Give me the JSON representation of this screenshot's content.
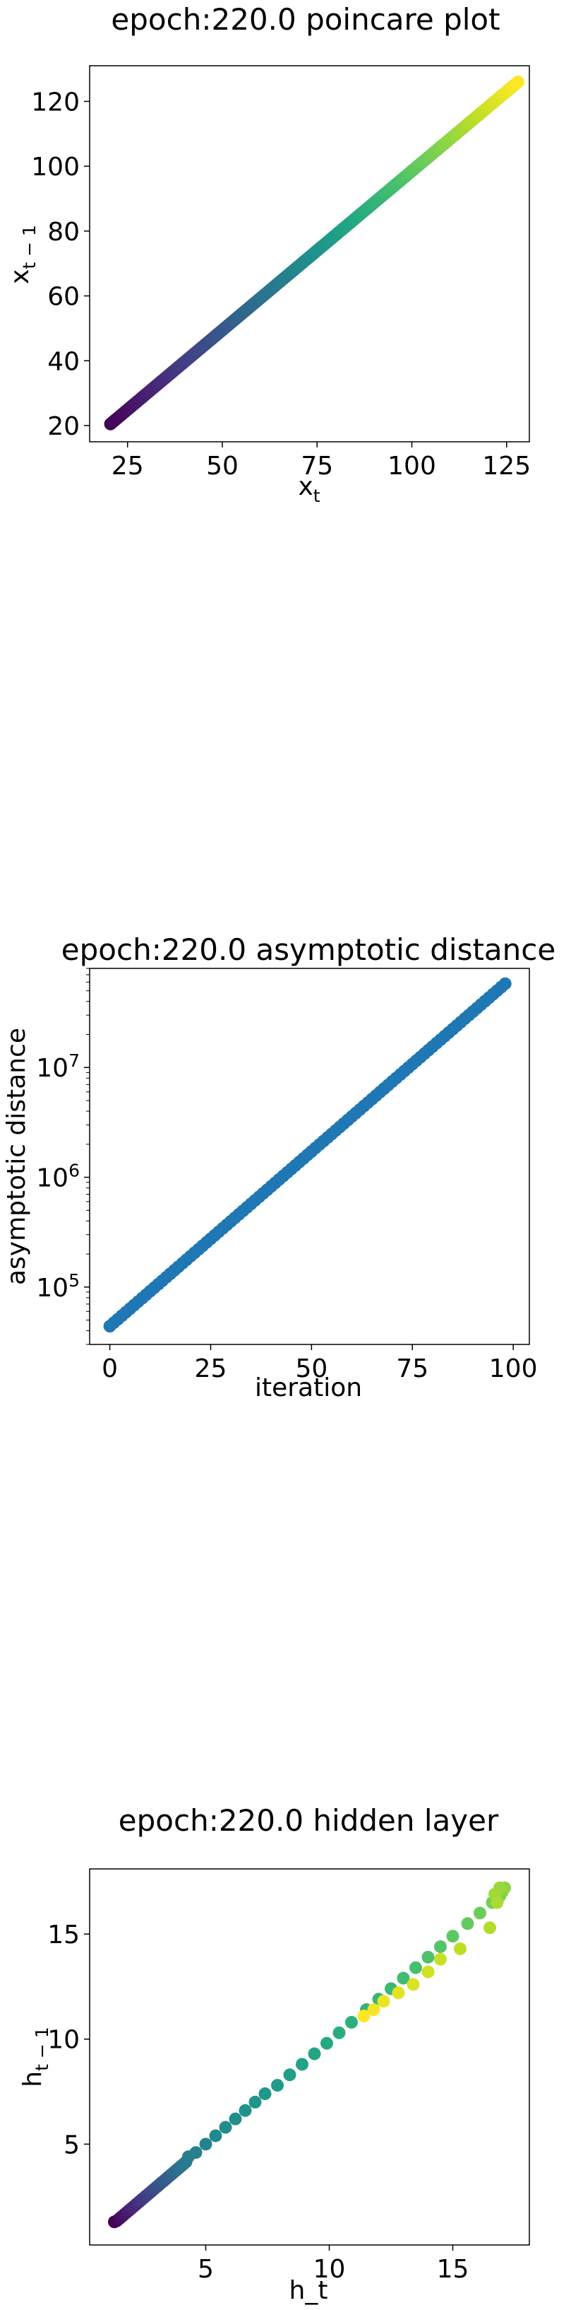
{
  "chart_data": [
    {
      "type": "scatter",
      "title": "epoch:220.0 poincare plot",
      "xlabel": "x",
      "xlabel_sub": "t",
      "ylabel": "x",
      "ylabel_sub": "t − 1",
      "xlim": [
        15,
        131
      ],
      "ylim": [
        15,
        131
      ],
      "xticks": [
        25,
        50,
        75,
        100,
        125
      ],
      "yticks": [
        20,
        40,
        60,
        80,
        100,
        120
      ],
      "colormap": "viridis",
      "series": [
        {
          "generator": "linear_line",
          "x_start": 20.5,
          "x_end": 128,
          "y_start": 20.5,
          "y_end": 126,
          "n": 220
        }
      ]
    },
    {
      "type": "scatter",
      "title": "epoch:220.0 asymptotic distance",
      "xlabel": "iteration",
      "ylabel": "asymptotic distance",
      "xlim": [
        -5,
        104
      ],
      "ylim": [
        30000,
        80000000
      ],
      "yscale": "log",
      "xticks": [
        0,
        25,
        50,
        75,
        100
      ],
      "yticks": [
        {
          "value": 100000,
          "base": "10",
          "exp": "5"
        },
        {
          "value": 1000000,
          "base": "10",
          "exp": "6"
        },
        {
          "value": 10000000,
          "base": "10",
          "exp": "7"
        }
      ],
      "color": "#1f77b4",
      "series": [
        {
          "generator": "log_line",
          "x_start": 0,
          "x_end": 98,
          "y_start": 44000,
          "y_end": 58000000,
          "n": 99
        }
      ]
    },
    {
      "type": "scatter",
      "title": "epoch:220.0 hidden layer",
      "xlabel": "h_t",
      "ylabel": "h",
      "ylabel_sub": "t − 1",
      "xlim": [
        0.3,
        18.1
      ],
      "ylim": [
        0.2,
        18.1
      ],
      "xticks": [
        5,
        10,
        15
      ],
      "yticks": [
        5,
        10,
        15
      ],
      "colormap": "viridis",
      "points": [
        [
          1.3,
          1.3
        ],
        [
          1.4,
          1.35
        ],
        [
          1.5,
          1.45
        ],
        [
          1.6,
          1.55
        ],
        [
          1.7,
          1.65
        ],
        [
          1.8,
          1.75
        ],
        [
          1.9,
          1.85
        ],
        [
          2.0,
          1.95
        ],
        [
          2.1,
          2.05
        ],
        [
          2.2,
          2.15
        ],
        [
          2.3,
          2.25
        ],
        [
          2.4,
          2.35
        ],
        [
          2.5,
          2.45
        ],
        [
          2.6,
          2.55
        ],
        [
          2.7,
          2.65
        ],
        [
          2.8,
          2.75
        ],
        [
          2.9,
          2.85
        ],
        [
          3.0,
          2.95
        ],
        [
          3.1,
          3.05
        ],
        [
          3.2,
          3.15
        ],
        [
          3.3,
          3.25
        ],
        [
          3.4,
          3.35
        ],
        [
          3.5,
          3.45
        ],
        [
          3.6,
          3.55
        ],
        [
          3.7,
          3.65
        ],
        [
          3.8,
          3.75
        ],
        [
          3.9,
          3.85
        ],
        [
          4.0,
          3.95
        ],
        [
          4.1,
          4.05
        ],
        [
          4.2,
          4.15
        ],
        [
          4.3,
          4.4
        ],
        [
          4.6,
          4.6
        ],
        [
          5.0,
          5.0
        ],
        [
          5.4,
          5.4
        ],
        [
          5.8,
          5.8
        ],
        [
          6.2,
          6.2
        ],
        [
          6.6,
          6.6
        ],
        [
          7.0,
          7.0
        ],
        [
          7.4,
          7.4
        ],
        [
          7.9,
          7.8
        ],
        [
          8.4,
          8.3
        ],
        [
          8.9,
          8.8
        ],
        [
          9.4,
          9.3
        ],
        [
          9.9,
          9.8
        ],
        [
          10.4,
          10.3
        ],
        [
          10.9,
          10.8
        ],
        [
          11.5,
          11.4
        ],
        [
          12.0,
          11.9
        ],
        [
          12.5,
          12.4
        ],
        [
          13.0,
          12.9
        ],
        [
          13.5,
          13.4
        ],
        [
          14.0,
          13.9
        ],
        [
          14.5,
          14.4
        ],
        [
          15.0,
          14.9
        ],
        [
          15.6,
          15.5
        ],
        [
          16.1,
          16.0
        ],
        [
          16.6,
          16.5
        ],
        [
          16.9,
          16.8
        ],
        [
          17.0,
          17.0
        ],
        [
          17.1,
          17.2
        ],
        [
          16.9,
          17.2
        ],
        [
          16.7,
          16.9
        ],
        [
          16.8,
          16.5
        ],
        [
          16.5,
          15.3
        ],
        [
          15.3,
          14.3
        ],
        [
          14.5,
          13.8
        ],
        [
          14.0,
          13.2
        ],
        [
          13.4,
          12.6
        ],
        [
          12.8,
          12.2
        ],
        [
          12.2,
          11.8
        ],
        [
          11.8,
          11.4
        ],
        [
          11.4,
          11.1
        ]
      ]
    }
  ]
}
